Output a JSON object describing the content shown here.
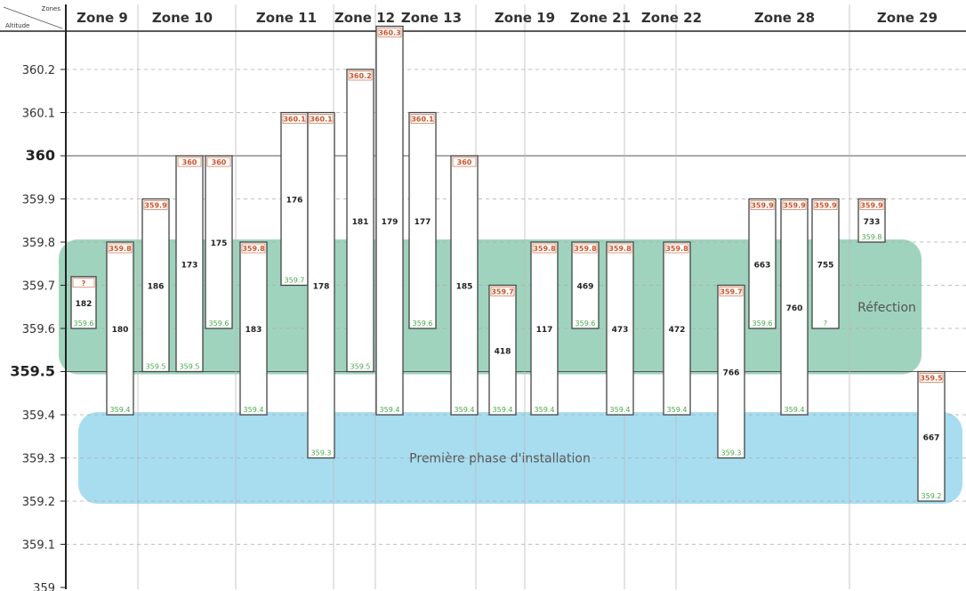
{
  "corner": {
    "top": "Zones",
    "bottom": "Altitude"
  },
  "colors": {
    "refection_band": "#9fd3bd",
    "installation_band": "#a8ddf0",
    "bar_fill": "#ffffff",
    "bar_stroke": "#444444",
    "top_label": "#c9542a",
    "bottom_label": "#4aa84a"
  },
  "chart_data": {
    "type": "bar",
    "subtype": "floating-range",
    "ylim": [
      359,
      360.26
    ],
    "yticks": [
      {
        "value": 359,
        "label": "359",
        "major": false
      },
      {
        "value": 359.1,
        "label": "359.1",
        "major": false
      },
      {
        "value": 359.2,
        "label": "359.2",
        "major": false
      },
      {
        "value": 359.3,
        "label": "359.3",
        "major": false
      },
      {
        "value": 359.4,
        "label": "359.4",
        "major": false
      },
      {
        "value": 359.5,
        "label": "359.5",
        "major": true
      },
      {
        "value": 359.6,
        "label": "359.6",
        "major": false
      },
      {
        "value": 359.7,
        "label": "359.7",
        "major": false
      },
      {
        "value": 359.8,
        "label": "359.8",
        "major": false
      },
      {
        "value": 359.9,
        "label": "359.9",
        "major": false
      },
      {
        "value": 360,
        "label": "360",
        "major": true
      },
      {
        "value": 360.1,
        "label": "360.1",
        "major": false
      },
      {
        "value": 360.2,
        "label": "360.2",
        "major": false
      }
    ],
    "grid": true,
    "zones": [
      "Zone 9",
      "Zone 10",
      "Zone 11",
      "Zone 12",
      "Zone 13",
      "Zone 19",
      "Zone 21",
      "Zone 22",
      "Zone 28",
      "Zone 29"
    ],
    "bands": [
      {
        "label": "Réfection",
        "from": 359.5,
        "to": 359.8
      },
      {
        "label": "Première phase d'installation",
        "from": 359.2,
        "to": 359.4
      }
    ],
    "bars": [
      {
        "id": "182",
        "zone": "Zone 9",
        "low": 359.6,
        "high": 359.72,
        "top_label": "?",
        "bottom_label": "359.6"
      },
      {
        "id": "180",
        "zone": "Zone 9",
        "low": 359.4,
        "high": 359.8,
        "top_label": "359.8",
        "bottom_label": "359.4"
      },
      {
        "id": "186",
        "zone": "Zone 10",
        "low": 359.5,
        "high": 359.9,
        "top_label": "359.9",
        "bottom_label": "359.5"
      },
      {
        "id": "173",
        "zone": "Zone 10",
        "low": 359.5,
        "high": 360,
        "top_label": "360",
        "bottom_label": "359.5"
      },
      {
        "id": "175",
        "zone": "Zone 10",
        "low": 359.6,
        "high": 360,
        "top_label": "360",
        "bottom_label": "359.6"
      },
      {
        "id": "183",
        "zone": "Zone 11",
        "low": 359.4,
        "high": 359.8,
        "top_label": "359.8",
        "bottom_label": "359.4"
      },
      {
        "id": "176",
        "zone": "Zone 11",
        "low": 359.7,
        "high": 360.1,
        "top_label": "360.1",
        "bottom_label": "359.7"
      },
      {
        "id": "178",
        "zone": "Zone 11",
        "low": 359.3,
        "high": 360.1,
        "top_label": "360.1",
        "bottom_label": "359.3"
      },
      {
        "id": "181",
        "zone": "Zone 12",
        "low": 359.5,
        "high": 360.2,
        "top_label": "360.2",
        "bottom_label": "359.5"
      },
      {
        "id": "179",
        "zone": "Zone 12",
        "low": 359.4,
        "high": 360.3,
        "top_label": "360.3",
        "bottom_label": "359.4"
      },
      {
        "id": "177",
        "zone": "Zone 13",
        "low": 359.6,
        "high": 360.1,
        "top_label": "360.1",
        "bottom_label": "359.6"
      },
      {
        "id": "185",
        "zone": "Zone 13",
        "low": 359.4,
        "high": 360,
        "top_label": "360",
        "bottom_label": "359.4"
      },
      {
        "id": "418",
        "zone": "Zone 19",
        "low": 359.4,
        "high": 359.7,
        "top_label": "359.7",
        "bottom_label": "359.4"
      },
      {
        "id": "117",
        "zone": "Zone 19",
        "low": 359.4,
        "high": 359.8,
        "top_label": "359.8",
        "bottom_label": "359.4"
      },
      {
        "id": "469",
        "zone": "Zone 21",
        "low": 359.6,
        "high": 359.8,
        "top_label": "359.8",
        "bottom_label": "359.6"
      },
      {
        "id": "473",
        "zone": "Zone 21",
        "low": 359.4,
        "high": 359.8,
        "top_label": "359.8",
        "bottom_label": "359.4"
      },
      {
        "id": "472",
        "zone": "Zone 22",
        "low": 359.4,
        "high": 359.8,
        "top_label": "359.8",
        "bottom_label": "359.4"
      },
      {
        "id": "766",
        "zone": "Zone 28",
        "low": 359.3,
        "high": 359.7,
        "top_label": "359.7",
        "bottom_label": "359.3"
      },
      {
        "id": "663",
        "zone": "Zone 28",
        "low": 359.6,
        "high": 359.9,
        "top_label": "359.9",
        "bottom_label": "359.6"
      },
      {
        "id": "760",
        "zone": "Zone 28",
        "low": 359.4,
        "high": 359.9,
        "top_label": "359.9",
        "bottom_label": "359.4"
      },
      {
        "id": "755",
        "zone": "Zone 28",
        "low": 359.6,
        "high": 359.9,
        "top_label": "359.9",
        "bottom_label": "?"
      },
      {
        "id": "733",
        "zone": "Zone 29",
        "low": 359.8,
        "high": 359.9,
        "top_label": "359.9",
        "bottom_label": "359.8"
      },
      {
        "id": "667",
        "zone": "Zone 29",
        "low": 359.2,
        "high": 359.5,
        "top_label": "359.5",
        "bottom_label": "359.2"
      }
    ]
  }
}
